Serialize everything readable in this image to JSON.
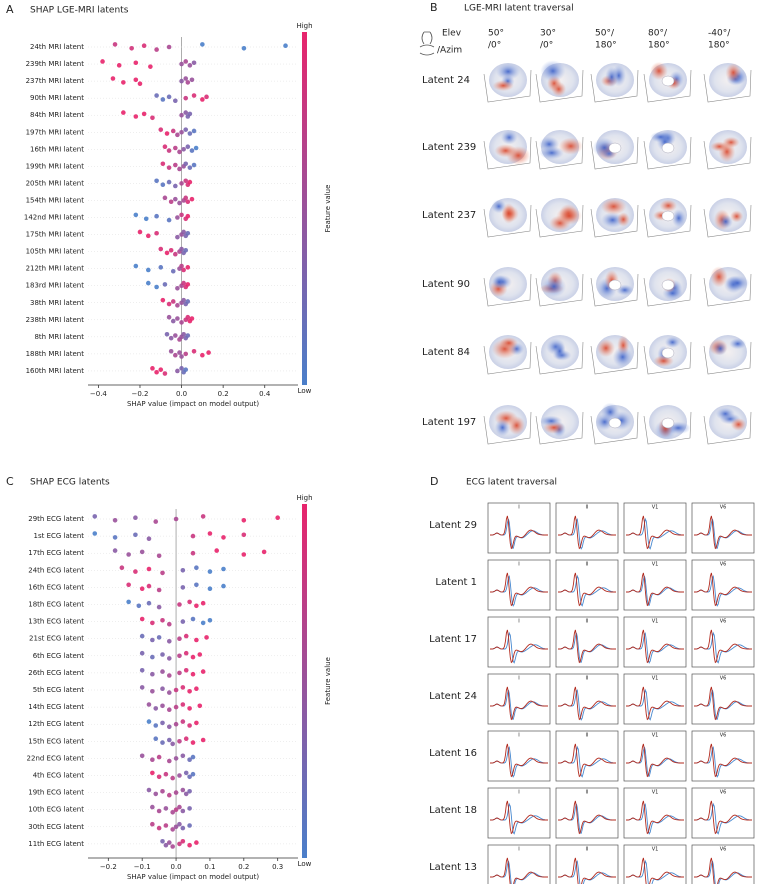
{
  "chart_data": [
    {
      "type": "beeswarm",
      "panel_label": "A",
      "title": "SHAP LGE-MRI latents",
      "xlabel": "SHAP value (impact on model output)",
      "xlim": [
        -0.45,
        0.56
      ],
      "xticks": [
        {
          "value": -0.4,
          "label": "−0.4"
        },
        {
          "value": -0.2,
          "label": "−0.2"
        },
        {
          "value": 0,
          "label": "0.0"
        },
        0.2,
        0.4
      ],
      "colorbar": {
        "high": "High",
        "low": "Low",
        "label": "Feature value",
        "low_color": "#4a7fca",
        "high_color": "#e8246c"
      },
      "features": [
        {
          "name": "24th MRI latent",
          "shap": [
            -0.32,
            -0.24,
            -0.18,
            -0.12,
            -0.06,
            0.1,
            0.3,
            0.5
          ],
          "feature_value": [
            0.8,
            0.85,
            0.9,
            0.7,
            0.6,
            0,
            0,
            0
          ]
        },
        {
          "name": "239th MRI latent",
          "shap": [
            -0.38,
            -0.3,
            -0.22,
            -0.15,
            0.0,
            0.02,
            0.04,
            0.06
          ],
          "feature_value": [
            1,
            1,
            1,
            1,
            0.5,
            0.6,
            0.5,
            0.4
          ]
        },
        {
          "name": "237th MRI latent",
          "shap": [
            -0.33,
            -0.28,
            -0.22,
            -0.2,
            0.0,
            0.02,
            0.03,
            0.05
          ],
          "feature_value": [
            1,
            1,
            1,
            1,
            0.4,
            0.5,
            0.6,
            0.5
          ]
        },
        {
          "name": "90th MRI latent",
          "shap": [
            -0.12,
            -0.09,
            -0.06,
            -0.03,
            0.02,
            0.06,
            0.1,
            0.12
          ],
          "feature_value": [
            0.2,
            0.1,
            0.2,
            0.3,
            0.8,
            0.9,
            1,
            0.9
          ]
        },
        {
          "name": "84th MRI latent",
          "shap": [
            -0.28,
            -0.22,
            -0.18,
            -0.14,
            0.0,
            0.02,
            0.03,
            0.04
          ],
          "feature_value": [
            1,
            1,
            1,
            0.9,
            0.5,
            0.4,
            0.3,
            0.3
          ]
        },
        {
          "name": "197th MRI latent",
          "shap": [
            -0.1,
            -0.07,
            -0.04,
            -0.02,
            0.0,
            0.02,
            0.04,
            0.06
          ],
          "feature_value": [
            0.9,
            1,
            0.8,
            0.6,
            0.5,
            0.3,
            0.2,
            0.1
          ]
        },
        {
          "name": "16th MRI latent",
          "shap": [
            -0.08,
            -0.06,
            -0.03,
            -0.01,
            0.01,
            0.03,
            0.05,
            0.07
          ],
          "feature_value": [
            0.9,
            0.8,
            0.7,
            0.6,
            0.4,
            0.3,
            0.1,
            0
          ]
        },
        {
          "name": "199th MRI latent",
          "shap": [
            -0.09,
            -0.06,
            -0.03,
            -0.01,
            0.01,
            0.02,
            0.04,
            0.06
          ],
          "feature_value": [
            0.9,
            0.8,
            0.7,
            0.6,
            0.5,
            0.3,
            0.2,
            0.1
          ]
        },
        {
          "name": "205th MRI latent",
          "shap": [
            -0.12,
            -0.09,
            -0.06,
            -0.03,
            0.0,
            0.02,
            0.03,
            0.04
          ],
          "feature_value": [
            0.1,
            0.1,
            0.2,
            0.3,
            0.6,
            0.8,
            0.9,
            1
          ]
        },
        {
          "name": "154th MRI latent",
          "shap": [
            -0.08,
            -0.05,
            -0.03,
            -0.01,
            0.01,
            0.02,
            0.03,
            0.05
          ],
          "feature_value": [
            0.6,
            0.7,
            0.5,
            0.5,
            0.6,
            0.8,
            0.9,
            1
          ]
        },
        {
          "name": "142nd MRI latent",
          "shap": [
            -0.22,
            -0.17,
            -0.12,
            -0.06,
            -0.02,
            0.0,
            0.02,
            0.03
          ],
          "feature_value": [
            0,
            0,
            0.1,
            0.1,
            0.5,
            0.8,
            0.9,
            1
          ]
        },
        {
          "name": "175th MRI latent",
          "shap": [
            -0.2,
            -0.16,
            -0.12,
            -0.02,
            0.0,
            0.01,
            0.02,
            0.03
          ],
          "feature_value": [
            1,
            1,
            0.9,
            0.4,
            0.5,
            0.4,
            0.3,
            0.2
          ]
        },
        {
          "name": "105th MRI latent",
          "shap": [
            -0.1,
            -0.07,
            -0.05,
            -0.03,
            -0.01,
            0.0,
            0.01,
            0.02
          ],
          "feature_value": [
            0.9,
            1,
            0.9,
            0.8,
            0.6,
            0.4,
            0.3,
            0.2
          ]
        },
        {
          "name": "212th MRI latent",
          "shap": [
            -0.22,
            -0.16,
            -0.1,
            -0.04,
            -0.01,
            0.0,
            0.01,
            0.03
          ],
          "feature_value": [
            0,
            0,
            0.1,
            0.2,
            0.5,
            0.7,
            0.9,
            1
          ]
        },
        {
          "name": "183rd MRI latent",
          "shap": [
            -0.16,
            -0.12,
            -0.08,
            -0.02,
            0.0,
            0.01,
            0.02,
            0.03
          ],
          "feature_value": [
            0,
            0,
            0.2,
            0.5,
            0.6,
            0.8,
            0.9,
            1
          ]
        },
        {
          "name": "38th MRI latent",
          "shap": [
            -0.09,
            -0.06,
            -0.04,
            -0.02,
            0.0,
            0.01,
            0.02,
            0.03
          ],
          "feature_value": [
            1,
            0.9,
            0.8,
            0.6,
            0.5,
            0.4,
            0.3,
            0.2
          ]
        },
        {
          "name": "238th MRI latent",
          "shap": [
            -0.06,
            -0.04,
            -0.02,
            0.0,
            0.02,
            0.03,
            0.04,
            0.05
          ],
          "feature_value": [
            0.5,
            0.4,
            0.5,
            0.6,
            0.8,
            0.9,
            1,
            1
          ]
        },
        {
          "name": "8th MRI latent",
          "shap": [
            -0.07,
            -0.05,
            -0.03,
            -0.01,
            0.0,
            0.01,
            0.02,
            0.03
          ],
          "feature_value": [
            0.3,
            0.4,
            0.5,
            0.6,
            0.5,
            0.4,
            0.3,
            0.2
          ]
        },
        {
          "name": "188th MRI latent",
          "shap": [
            -0.05,
            -0.03,
            -0.01,
            0.0,
            0.02,
            0.06,
            0.1,
            0.13
          ],
          "feature_value": [
            0.5,
            0.6,
            0.5,
            0.5,
            0.7,
            0.9,
            1,
            1
          ]
        },
        {
          "name": "160th MRI latent",
          "shap": [
            -0.14,
            -0.12,
            -0.1,
            -0.08,
            -0.02,
            0.0,
            0.01,
            0.02
          ],
          "feature_value": [
            1,
            1,
            1,
            0.9,
            0.4,
            0.3,
            0.2,
            0.1
          ]
        }
      ]
    },
    {
      "type": "beeswarm",
      "panel_label": "C",
      "title": "SHAP ECG latents",
      "xlabel": "SHAP value (impact on model output)",
      "xlim": [
        -0.26,
        0.36
      ],
      "xticks": [
        {
          "value": -0.2,
          "label": "−0.2"
        },
        {
          "value": -0.1,
          "label": "−0.1"
        },
        {
          "value": 0,
          "label": "0.0"
        },
        0.1,
        0.2,
        0.3
      ],
      "colorbar": {
        "high": "High",
        "low": "Low",
        "label": "Feature value",
        "low_color": "#4a7fca",
        "high_color": "#e8246c"
      },
      "features": [
        {
          "name": "29th ECG latent",
          "shap": [
            -0.24,
            -0.18,
            -0.12,
            -0.06,
            0.0,
            0.08,
            0.2,
            0.3
          ],
          "feature_value": [
            0.3,
            0.5,
            0.4,
            0.6,
            0.6,
            0.8,
            1,
            1
          ]
        },
        {
          "name": "1st ECG latent",
          "shap": [
            -0.24,
            -0.18,
            -0.12,
            -0.08,
            0.05,
            0.1,
            0.14,
            0.2
          ],
          "feature_value": [
            0,
            0.1,
            0.2,
            0.4,
            0.8,
            1,
            1,
            0.9
          ]
        },
        {
          "name": "17th ECG latent",
          "shap": [
            -0.18,
            -0.14,
            -0.1,
            -0.05,
            0.05,
            0.12,
            0.2,
            0.26
          ],
          "feature_value": [
            0.4,
            0.5,
            0.5,
            0.6,
            0.8,
            1,
            1,
            1
          ]
        },
        {
          "name": "24th ECG latent",
          "shap": [
            -0.16,
            -0.12,
            -0.08,
            -0.04,
            0.02,
            0.06,
            0.1,
            0.14
          ],
          "feature_value": [
            0.8,
            0.9,
            1,
            0.7,
            0.3,
            0.1,
            0,
            0
          ]
        },
        {
          "name": "16th ECG latent",
          "shap": [
            -0.14,
            -0.1,
            -0.08,
            -0.05,
            0.02,
            0.06,
            0.1,
            0.14
          ],
          "feature_value": [
            0.9,
            1,
            0.9,
            0.7,
            0.3,
            0.1,
            0,
            0
          ]
        },
        {
          "name": "18th ECG latent",
          "shap": [
            -0.14,
            -0.11,
            -0.08,
            -0.05,
            0.01,
            0.04,
            0.06,
            0.08
          ],
          "feature_value": [
            0,
            0.1,
            0.2,
            0.4,
            0.8,
            0.9,
            1,
            1
          ]
        },
        {
          "name": "13th ECG latent",
          "shap": [
            -0.1,
            -0.07,
            -0.04,
            -0.02,
            0.02,
            0.05,
            0.08,
            0.1
          ],
          "feature_value": [
            1,
            0.9,
            0.8,
            0.7,
            0.3,
            0.1,
            0,
            0
          ]
        },
        {
          "name": "21st ECG latent",
          "shap": [
            -0.1,
            -0.07,
            -0.05,
            -0.02,
            0.01,
            0.03,
            0.06,
            0.09
          ],
          "feature_value": [
            0.2,
            0.3,
            0.2,
            0.4,
            0.7,
            0.9,
            1,
            1
          ]
        },
        {
          "name": "6th ECG latent",
          "shap": [
            -0.1,
            -0.07,
            -0.04,
            -0.02,
            0.01,
            0.03,
            0.05,
            0.07
          ],
          "feature_value": [
            0.3,
            0.2,
            0.3,
            0.4,
            0.7,
            0.9,
            1,
            1
          ]
        },
        {
          "name": "26th ECG latent",
          "shap": [
            -0.1,
            -0.07,
            -0.04,
            -0.02,
            0.01,
            0.03,
            0.05,
            0.08
          ],
          "feature_value": [
            0.3,
            0.4,
            0.5,
            0.6,
            0.7,
            0.9,
            1,
            1
          ]
        },
        {
          "name": "5th ECG latent",
          "shap": [
            -0.1,
            -0.07,
            -0.04,
            -0.02,
            0.0,
            0.02,
            0.04,
            0.06
          ],
          "feature_value": [
            0.4,
            0.5,
            0.4,
            0.5,
            0.8,
            0.9,
            1,
            1
          ]
        },
        {
          "name": "14th ECG latent",
          "shap": [
            -0.08,
            -0.06,
            -0.04,
            -0.02,
            0.0,
            0.02,
            0.04,
            0.07
          ],
          "feature_value": [
            0.5,
            0.4,
            0.5,
            0.6,
            0.7,
            0.9,
            1,
            1
          ]
        },
        {
          "name": "12th ECG latent",
          "shap": [
            -0.08,
            -0.06,
            -0.04,
            -0.02,
            0.0,
            0.02,
            0.04,
            0.06
          ],
          "feature_value": [
            0,
            0.1,
            0.3,
            0.4,
            0.6,
            0.8,
            0.9,
            1
          ]
        },
        {
          "name": "15th ECG latent",
          "shap": [
            -0.06,
            -0.04,
            -0.02,
            -0.01,
            0.01,
            0.03,
            0.05,
            0.08
          ],
          "feature_value": [
            0.1,
            0.2,
            0.3,
            0.4,
            0.7,
            0.9,
            1,
            1
          ]
        },
        {
          "name": "22nd ECG latent",
          "shap": [
            -0.1,
            -0.07,
            -0.05,
            -0.02,
            0.0,
            0.02,
            0.04,
            0.05
          ],
          "feature_value": [
            0.5,
            0.6,
            0.7,
            0.6,
            0.5,
            0.4,
            0.2,
            0.1
          ]
        },
        {
          "name": "4th ECG latent",
          "shap": [
            -0.07,
            -0.05,
            -0.03,
            -0.01,
            0.01,
            0.03,
            0.04,
            0.05
          ],
          "feature_value": [
            1,
            0.9,
            0.8,
            0.7,
            0.5,
            0.3,
            0.2,
            0.1
          ]
        },
        {
          "name": "19th ECG latent",
          "shap": [
            -0.08,
            -0.06,
            -0.04,
            -0.02,
            0.0,
            0.02,
            0.03,
            0.04
          ],
          "feature_value": [
            0.4,
            0.5,
            0.6,
            0.7,
            0.6,
            0.5,
            0.4,
            0.3
          ]
        },
        {
          "name": "10th ECG latent",
          "shap": [
            -0.07,
            -0.05,
            -0.03,
            -0.01,
            0.0,
            0.01,
            0.02,
            0.04
          ],
          "feature_value": [
            0.5,
            0.6,
            0.5,
            0.6,
            0.7,
            0.6,
            0.4,
            0.3
          ]
        },
        {
          "name": "30th ECG latent",
          "shap": [
            -0.07,
            -0.05,
            -0.03,
            -0.01,
            0.0,
            0.01,
            0.02,
            0.04
          ],
          "feature_value": [
            0.7,
            0.8,
            0.7,
            0.6,
            0.5,
            0.4,
            0.3,
            0.2
          ]
        },
        {
          "name": "11th ECG latent",
          "shap": [
            -0.04,
            -0.03,
            -0.02,
            -0.01,
            0.01,
            0.02,
            0.04,
            0.06
          ],
          "feature_value": [
            0.3,
            0.4,
            0.5,
            0.6,
            0.8,
            0.9,
            1,
            1
          ]
        }
      ]
    }
  ],
  "mri_traversal": {
    "panel_label": "B",
    "title": "LGE-MRI latent traversal",
    "elev": "Elev",
    "azim": "/Azim",
    "columns": [
      {
        "elev": "50°",
        "azim": "/0°"
      },
      {
        "elev": "30°",
        "azim": "/0°"
      },
      {
        "elev": "50°/",
        "azim": "180°"
      },
      {
        "elev": "80°/",
        "azim": "180°"
      },
      {
        "elev": "-40°/",
        "azim": "180°"
      }
    ],
    "rows": [
      "Latent 24",
      "Latent 239",
      "Latent 237",
      "Latent 90",
      "Latent 84",
      "Latent 197"
    ]
  },
  "ecg_traversal": {
    "panel_label": "D",
    "title": "ECG latent traversal",
    "leads": [
      "I",
      "II",
      "V1",
      "V6"
    ],
    "rows": [
      "Latent 29",
      "Latent 1",
      "Latent 17",
      "Latent 24",
      "Latent 16",
      "Latent 18",
      "Latent 13"
    ]
  }
}
